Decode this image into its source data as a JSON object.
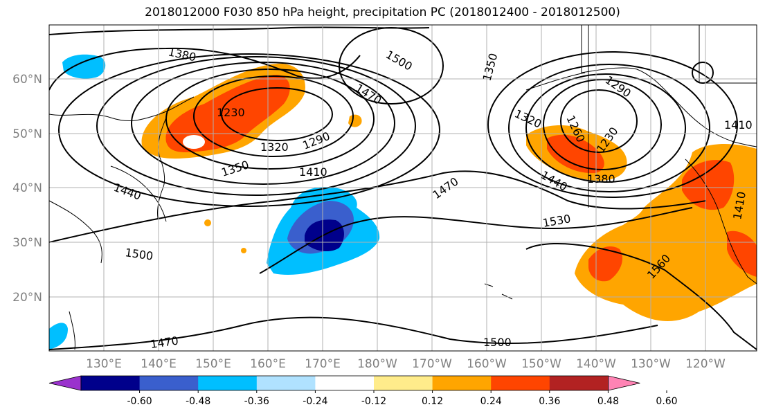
{
  "title": "2018012000 F030 850 hPa height, precipitation PC (2018012400 - 2018012500)",
  "lat_labels": [
    "60°N",
    "50°N",
    "40°N",
    "30°N",
    "20°N"
  ],
  "lon_labels": [
    "130°E",
    "140°E",
    "150°E",
    "160°E",
    "170°E",
    "180°W",
    "170°W",
    "160°W",
    "150°W",
    "140°W",
    "130°W",
    "120°W"
  ],
  "contour_labels": [
    "1380",
    "1500",
    "1470",
    "1230",
    "1320",
    "1290",
    "1350",
    "1410",
    "1440",
    "1500",
    "1470",
    "1470",
    "1530",
    "1350",
    "1290",
    "1320",
    "1260",
    "1230",
    "1440",
    "1380",
    "1410",
    "1560",
    "1410",
    "1500"
  ],
  "colorbar": {
    "colors": [
      "#9a32cd",
      "#00008b",
      "#3a5fcd",
      "#00bfff",
      "#b0e2ff",
      "#ffffff",
      "#ffec8b",
      "#ffa500",
      "#ff4500",
      "#b22222",
      "#ff83b4"
    ],
    "tick_labels": [
      "-0.60",
      "-0.48",
      "-0.36",
      "-0.24",
      "-0.12",
      "0.12",
      "0.24",
      "0.36",
      "0.48",
      "0.60"
    ]
  }
}
